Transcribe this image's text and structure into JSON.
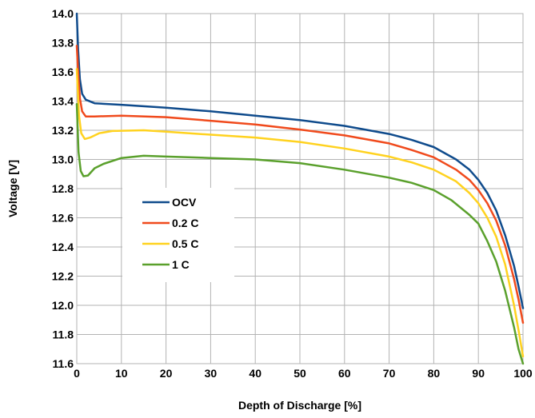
{
  "chart_data": {
    "type": "line",
    "xlabel": "Depth of Discharge [%]",
    "ylabel": "Voltage [V]",
    "xlim": [
      0,
      100
    ],
    "ylim": [
      11.6,
      14.0
    ],
    "xticks": [
      "0",
      "10",
      "20",
      "30",
      "40",
      "50",
      "60",
      "70",
      "80",
      "90",
      "100"
    ],
    "yticks": [
      "11.6",
      "11.8",
      "12.0",
      "12.2",
      "12.4",
      "12.6",
      "12.8",
      "13.0",
      "13.2",
      "13.4",
      "13.6",
      "13.8",
      "14.0"
    ],
    "grid": true,
    "legend_position": "center-left",
    "series": [
      {
        "name": "OCV",
        "color": "#0f4b8c",
        "points": [
          [
            0,
            14.0
          ],
          [
            0.3,
            13.75
          ],
          [
            0.7,
            13.55
          ],
          [
            1.2,
            13.45
          ],
          [
            2,
            13.41
          ],
          [
            4,
            13.385
          ],
          [
            10,
            13.375
          ],
          [
            20,
            13.355
          ],
          [
            30,
            13.33
          ],
          [
            40,
            13.3
          ],
          [
            50,
            13.27
          ],
          [
            60,
            13.23
          ],
          [
            70,
            13.175
          ],
          [
            75,
            13.135
          ],
          [
            80,
            13.085
          ],
          [
            85,
            13.0
          ],
          [
            88,
            12.93
          ],
          [
            90,
            12.86
          ],
          [
            92,
            12.77
          ],
          [
            94,
            12.65
          ],
          [
            96,
            12.48
          ],
          [
            98,
            12.27
          ],
          [
            99,
            12.13
          ],
          [
            100,
            11.98
          ]
        ]
      },
      {
        "name": "0.2 C",
        "color": "#f04a1c",
        "points": [
          [
            0,
            13.78
          ],
          [
            0.3,
            13.6
          ],
          [
            0.7,
            13.42
          ],
          [
            1.2,
            13.33
          ],
          [
            2,
            13.295
          ],
          [
            4,
            13.295
          ],
          [
            10,
            13.3
          ],
          [
            20,
            13.29
          ],
          [
            30,
            13.265
          ],
          [
            40,
            13.24
          ],
          [
            50,
            13.205
          ],
          [
            60,
            13.165
          ],
          [
            70,
            13.11
          ],
          [
            75,
            13.065
          ],
          [
            80,
            13.015
          ],
          [
            85,
            12.93
          ],
          [
            88,
            12.86
          ],
          [
            90,
            12.79
          ],
          [
            92,
            12.7
          ],
          [
            94,
            12.58
          ],
          [
            96,
            12.41
          ],
          [
            98,
            12.18
          ],
          [
            99,
            12.04
          ],
          [
            100,
            11.88
          ]
        ]
      },
      {
        "name": "0.5 C",
        "color": "#ffd21f",
        "points": [
          [
            0,
            13.62
          ],
          [
            0.5,
            13.3
          ],
          [
            1,
            13.18
          ],
          [
            1.8,
            13.14
          ],
          [
            3,
            13.15
          ],
          [
            5,
            13.18
          ],
          [
            8,
            13.195
          ],
          [
            15,
            13.2
          ],
          [
            20,
            13.19
          ],
          [
            30,
            13.17
          ],
          [
            40,
            13.15
          ],
          [
            50,
            13.12
          ],
          [
            60,
            13.075
          ],
          [
            70,
            13.02
          ],
          [
            75,
            12.98
          ],
          [
            80,
            12.93
          ],
          [
            85,
            12.85
          ],
          [
            88,
            12.77
          ],
          [
            90,
            12.7
          ],
          [
            92,
            12.6
          ],
          [
            94,
            12.47
          ],
          [
            96,
            12.28
          ],
          [
            98,
            12.0
          ],
          [
            99,
            11.83
          ],
          [
            100,
            11.65
          ]
        ]
      },
      {
        "name": "1 C",
        "color": "#5aa02c",
        "points": [
          [
            0,
            13.38
          ],
          [
            0.4,
            13.05
          ],
          [
            0.9,
            12.92
          ],
          [
            1.5,
            12.885
          ],
          [
            2.5,
            12.89
          ],
          [
            4,
            12.94
          ],
          [
            6,
            12.97
          ],
          [
            10,
            13.01
          ],
          [
            15,
            13.025
          ],
          [
            20,
            13.02
          ],
          [
            30,
            13.01
          ],
          [
            40,
            13.0
          ],
          [
            50,
            12.975
          ],
          [
            60,
            12.93
          ],
          [
            70,
            12.875
          ],
          [
            75,
            12.84
          ],
          [
            80,
            12.79
          ],
          [
            84,
            12.72
          ],
          [
            88,
            12.62
          ],
          [
            90,
            12.56
          ],
          [
            92,
            12.44
          ],
          [
            94,
            12.3
          ],
          [
            96,
            12.1
          ],
          [
            98,
            11.85
          ],
          [
            99,
            11.7
          ],
          [
            100,
            11.6
          ]
        ]
      }
    ]
  }
}
